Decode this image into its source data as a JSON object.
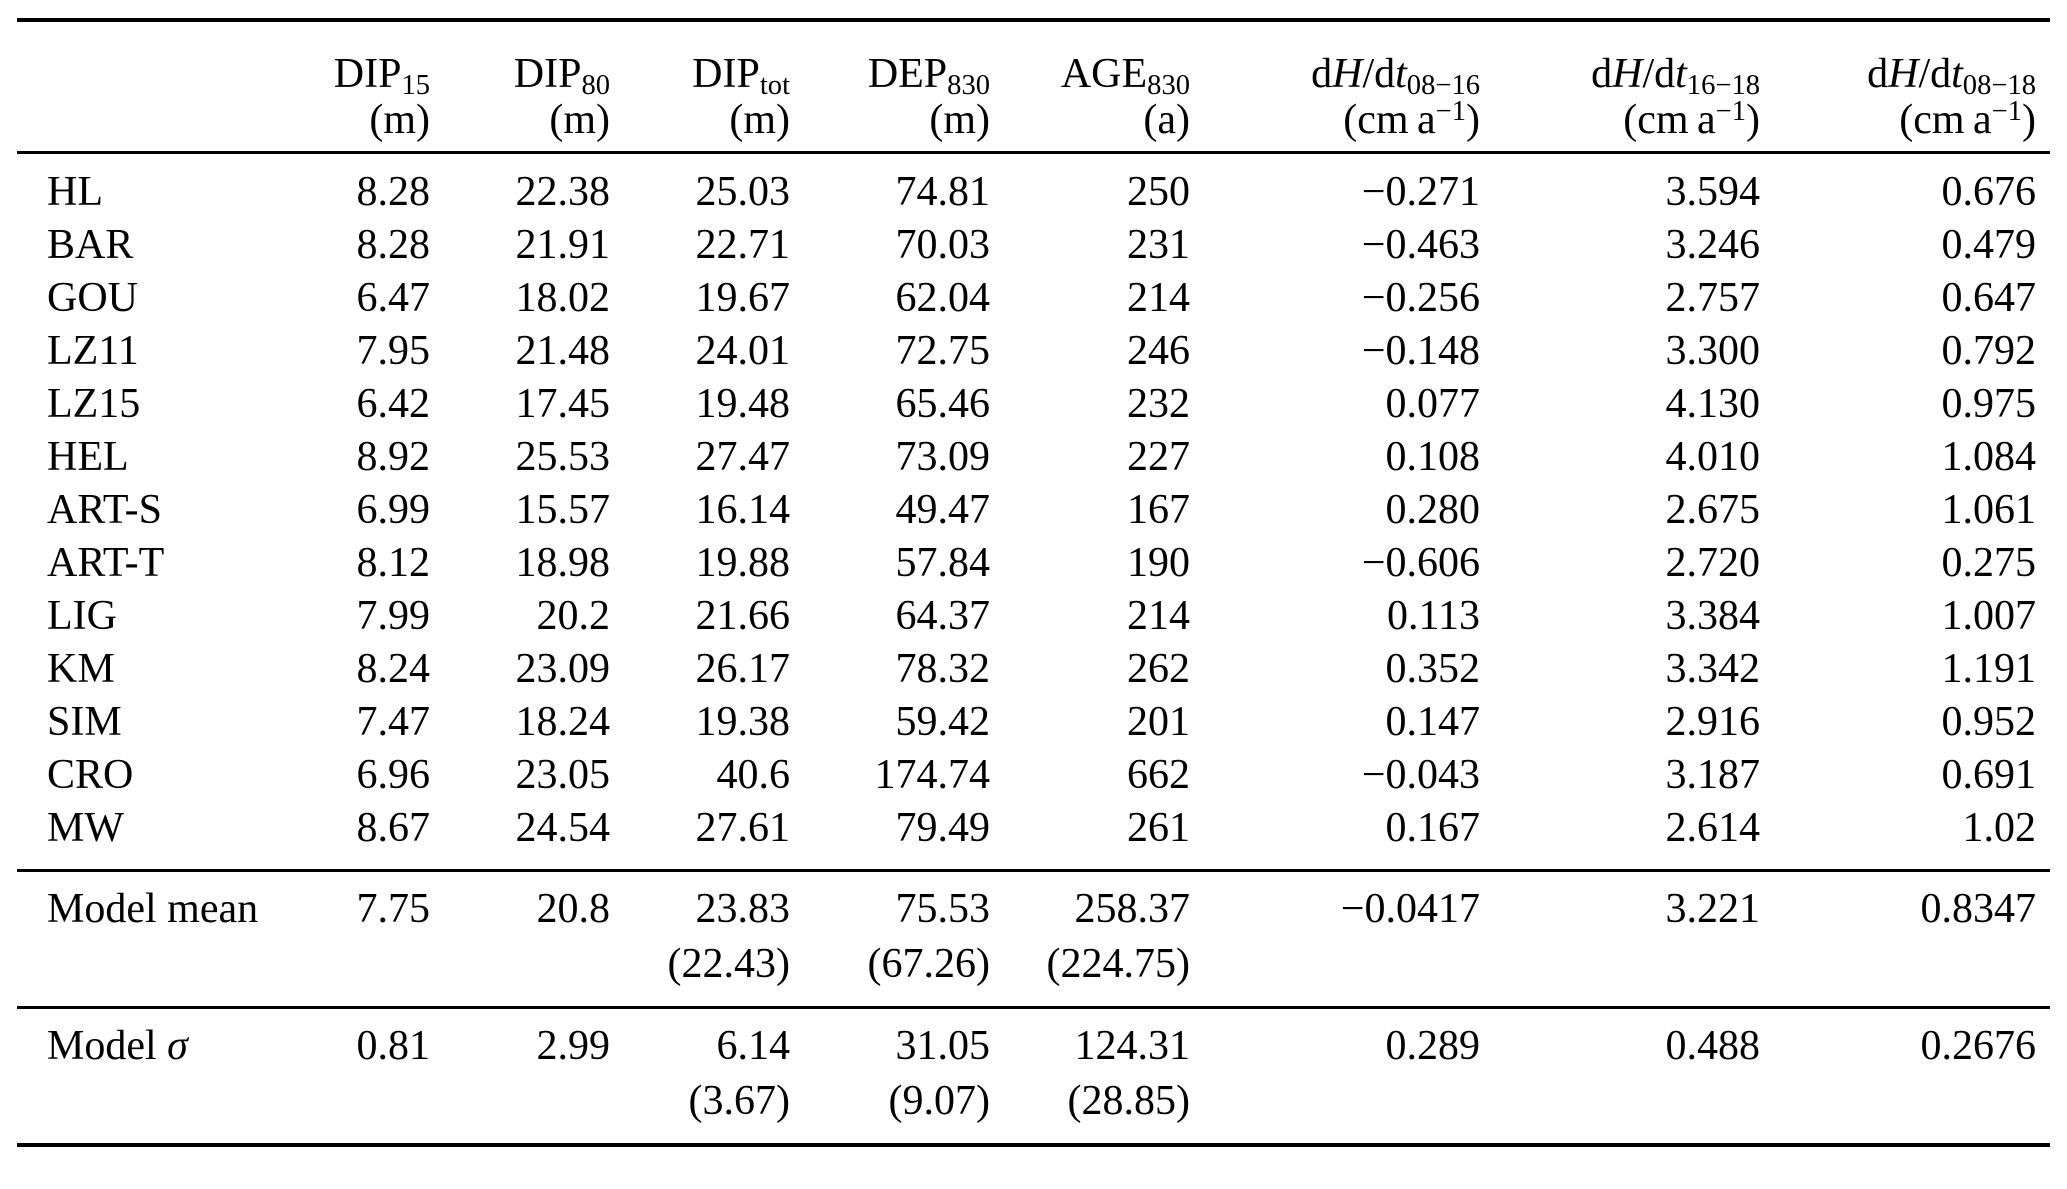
{
  "page": {
    "background": "#ffffff",
    "text_color": "#000000",
    "rule_color": "#000000"
  },
  "table": {
    "columns": [
      {
        "key": "site",
        "header": [],
        "unit": []
      },
      {
        "key": "dip15",
        "header": [
          {
            "t": "DIP"
          },
          {
            "t": "15",
            "sub": true
          }
        ],
        "unit": [
          {
            "t": "(m)"
          }
        ]
      },
      {
        "key": "dip80",
        "header": [
          {
            "t": "DIP"
          },
          {
            "t": "80",
            "sub": true
          }
        ],
        "unit": [
          {
            "t": "(m)"
          }
        ]
      },
      {
        "key": "diptot",
        "header": [
          {
            "t": "DIP"
          },
          {
            "t": "tot",
            "sub": true
          }
        ],
        "unit": [
          {
            "t": "(m)"
          }
        ]
      },
      {
        "key": "dep830",
        "header": [
          {
            "t": "DEP"
          },
          {
            "t": "830",
            "sub": true
          }
        ],
        "unit": [
          {
            "t": "(m)"
          }
        ]
      },
      {
        "key": "age830",
        "header": [
          {
            "t": "AGE"
          },
          {
            "t": "830",
            "sub": true
          }
        ],
        "unit": [
          {
            "t": "(a)"
          }
        ]
      },
      {
        "key": "dhdt_08_16",
        "header": [
          {
            "t": "d"
          },
          {
            "t": "H",
            "it": true
          },
          {
            "t": "/d"
          },
          {
            "t": "t",
            "it": true
          },
          {
            "t": "08−16",
            "sub": true
          }
        ],
        "unit": [
          {
            "t": "(cm a"
          },
          {
            "t": "−1",
            "sup": true
          },
          {
            "t": ")"
          }
        ]
      },
      {
        "key": "dhdt_16_18",
        "header": [
          {
            "t": "d"
          },
          {
            "t": "H",
            "it": true
          },
          {
            "t": "/d"
          },
          {
            "t": "t",
            "it": true
          },
          {
            "t": "16−18",
            "sub": true
          }
        ],
        "unit": [
          {
            "t": "(cm a"
          },
          {
            "t": "−1",
            "sup": true
          },
          {
            "t": ")"
          }
        ]
      },
      {
        "key": "dhdt_08_18",
        "header": [
          {
            "t": "d"
          },
          {
            "t": "H",
            "it": true
          },
          {
            "t": "/d"
          },
          {
            "t": "t",
            "it": true
          },
          {
            "t": "08−18",
            "sub": true
          }
        ],
        "unit": [
          {
            "t": "(cm a"
          },
          {
            "t": "−1",
            "sup": true
          },
          {
            "t": ")"
          }
        ]
      }
    ],
    "rows": [
      {
        "label": "HL",
        "values": [
          "8.28",
          "22.38",
          "25.03",
          "74.81",
          "250",
          "−0.271",
          "3.594",
          "0.676"
        ]
      },
      {
        "label": "BAR",
        "values": [
          "8.28",
          "21.91",
          "22.71",
          "70.03",
          "231",
          "−0.463",
          "3.246",
          "0.479"
        ]
      },
      {
        "label": "GOU",
        "values": [
          "6.47",
          "18.02",
          "19.67",
          "62.04",
          "214",
          "−0.256",
          "2.757",
          "0.647"
        ]
      },
      {
        "label": "LZ11",
        "values": [
          "7.95",
          "21.48",
          "24.01",
          "72.75",
          "246",
          "−0.148",
          "3.300",
          "0.792"
        ]
      },
      {
        "label": "LZ15",
        "values": [
          "6.42",
          "17.45",
          "19.48",
          "65.46",
          "232",
          "0.077",
          "4.130",
          "0.975"
        ]
      },
      {
        "label": "HEL",
        "values": [
          "8.92",
          "25.53",
          "27.47",
          "73.09",
          "227",
          "0.108",
          "4.010",
          "1.084"
        ]
      },
      {
        "label": "ART-S",
        "values": [
          "6.99",
          "15.57",
          "16.14",
          "49.47",
          "167",
          "0.280",
          "2.675",
          "1.061"
        ]
      },
      {
        "label": "ART-T",
        "values": [
          "8.12",
          "18.98",
          "19.88",
          "57.84",
          "190",
          "−0.606",
          "2.720",
          "0.275"
        ]
      },
      {
        "label": "LIG",
        "values": [
          "7.99",
          "20.2",
          "21.66",
          "64.37",
          "214",
          "0.113",
          "3.384",
          "1.007"
        ]
      },
      {
        "label": "KM",
        "values": [
          "8.24",
          "23.09",
          "26.17",
          "78.32",
          "262",
          "0.352",
          "3.342",
          "1.191"
        ]
      },
      {
        "label": "SIM",
        "values": [
          "7.47",
          "18.24",
          "19.38",
          "59.42",
          "201",
          "0.147",
          "2.916",
          "0.952"
        ]
      },
      {
        "label": "CRO",
        "values": [
          "6.96",
          "23.05",
          "40.6",
          "174.74",
          "662",
          "−0.043",
          "3.187",
          "0.691"
        ]
      },
      {
        "label": "MW",
        "values": [
          "8.67",
          "24.54",
          "27.61",
          "79.49",
          "261",
          "0.167",
          "2.614",
          "1.02"
        ]
      }
    ],
    "summary_rows": [
      {
        "key": "model-mean",
        "label": [
          {
            "t": "Model mean"
          }
        ],
        "values": [
          "7.75",
          "20.8",
          "23.83",
          "75.53",
          "258.37",
          "−0.0417",
          "3.221",
          "0.8347"
        ],
        "parens": [
          "",
          "",
          "(22.43)",
          "(67.26)",
          "(224.75)",
          "",
          "",
          ""
        ]
      },
      {
        "key": "model-sigma",
        "label": [
          {
            "t": "Model "
          },
          {
            "t": "σ",
            "it": true
          }
        ],
        "values": [
          "0.81",
          "2.99",
          "6.14",
          "31.05",
          "124.31",
          "0.289",
          "0.488",
          "0.2676"
        ],
        "parens": [
          "",
          "",
          "(3.67)",
          "(9.07)",
          "(28.85)",
          "",
          "",
          ""
        ]
      }
    ]
  }
}
